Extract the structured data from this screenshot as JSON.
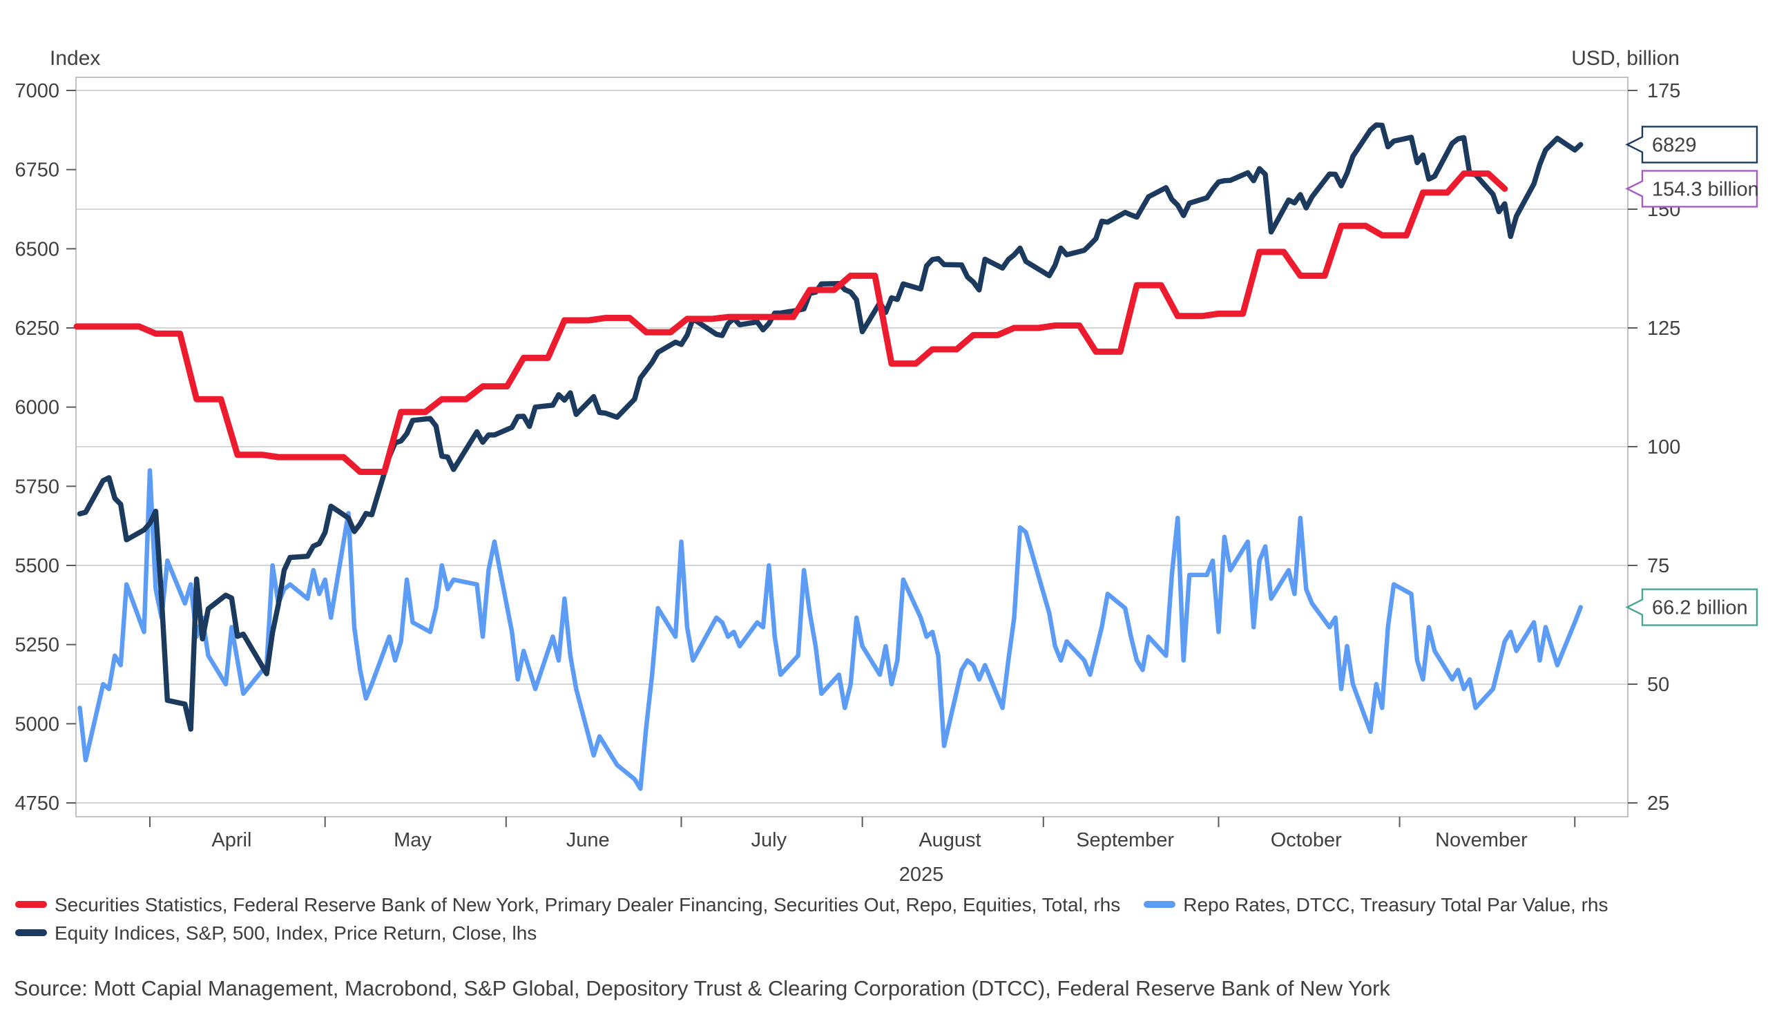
{
  "source": "Source: Mott Capial Management, Macrobond, S&P Global, Depository Trust & Clearing Corporation (DTCC), Federal Reserve Bank of New York",
  "legend": {
    "items": [
      {
        "key": "repo_equities",
        "label": "Securities Statistics, Federal Reserve Bank of New York, Primary Dealer Financing, Securities Out, Repo, Equities, Total, rhs",
        "color": "#EC1B2D"
      },
      {
        "key": "repo_rates",
        "label": "Repo Rates, DTCC, Treasury Total Par Value, rhs",
        "color": "#5D9CF5"
      },
      {
        "key": "sp500",
        "label": "Equity Indices, S&P, 500, Index, Price Return, Close, lhs",
        "color": "#1C3A5E"
      }
    ]
  },
  "colors": {
    "grid": "#D6D6D6",
    "plot_border": "#C2C2C2",
    "tick": "#5A5A5A",
    "text": "#404040",
    "red": "#EC1B2D",
    "navy": "#1C3A5E",
    "blue": "#5D9CF5",
    "purple": "#A35AC5",
    "teal": "#4AA492"
  },
  "chart_data": {
    "type": "line",
    "title": "",
    "year": "2025",
    "left_axis": {
      "title": "Index",
      "min": 4750,
      "max": 7000,
      "ticks": [
        7000,
        6750,
        6500,
        6250,
        6000,
        5750,
        5500,
        5250,
        5000,
        4750
      ]
    },
    "right_axis": {
      "title": "USD, billion",
      "min": 25,
      "max": 175,
      "ticks": [
        175,
        150,
        125,
        100,
        75,
        50,
        25
      ]
    },
    "x_axis": {
      "year_label": "2025",
      "month_tick_dates": [
        "4/1",
        "5/1",
        "6/1",
        "7/1",
        "8/1",
        "9/1",
        "10/1",
        "11/1",
        "12/1"
      ],
      "month_labels": [
        {
          "label": "April",
          "mid": "4/15"
        },
        {
          "label": "May",
          "mid": "5/16"
        },
        {
          "label": "June",
          "mid": "6/15"
        },
        {
          "label": "July",
          "mid": "7/16"
        },
        {
          "label": "August",
          "mid": "8/16"
        },
        {
          "label": "September",
          "mid": "9/15"
        },
        {
          "label": "October",
          "mid": "10/16"
        },
        {
          "label": "November",
          "mid": "11/15"
        }
      ]
    },
    "series": [
      {
        "key": "repo_equities",
        "name": "Securities Statistics, Federal Reserve Bank of New York, Primary Dealer Financing, Securities Out, Repo, Equities, Total, rhs",
        "axis": "rhs",
        "color": "#EC1B2D",
        "style": "step",
        "dates": [
          "3/19",
          "3/26",
          "4/2",
          "4/9",
          "4/16",
          "4/23",
          "4/30",
          "5/7",
          "5/14",
          "5/21",
          "5/28",
          "6/4",
          "6/11",
          "6/18",
          "6/25",
          "7/2",
          "7/9",
          "7/16",
          "7/23",
          "7/30",
          "8/6",
          "8/13",
          "8/20",
          "8/27",
          "9/3",
          "9/10",
          "9/17",
          "9/24",
          "10/1",
          "10/8",
          "10/15",
          "10/22",
          "10/29",
          "11/5",
          "11/12",
          "11/19"
        ],
        "values": [
          125.3,
          125.3,
          123.8,
          110,
          98.3,
          97.8,
          97.8,
          94.7,
          107.3,
          110,
          112.7,
          118.7,
          126.6,
          127.1,
          124.1,
          126.9,
          127.3,
          127.3,
          133,
          136,
          117.5,
          120.5,
          123.5,
          125,
          125.5,
          120,
          134,
          127.5,
          128,
          141,
          136,
          146.5,
          144.5,
          153.5,
          157.5,
          154.3
        ]
      },
      {
        "key": "repo_rates",
        "name": "Repo Rates, DTCC, Treasury Total Par Value, rhs",
        "axis": "rhs",
        "color": "#5D9CF5",
        "style": "line",
        "dates": [
          "3/20",
          "3/21",
          "3/24",
          "3/25",
          "3/26",
          "3/27",
          "3/28",
          "3/31",
          "4/1",
          "4/2",
          "4/3",
          "4/4",
          "4/7",
          "4/8",
          "4/9",
          "4/10",
          "4/11",
          "4/14",
          "4/15",
          "4/16",
          "4/17",
          "4/21",
          "4/22",
          "4/23",
          "4/24",
          "4/25",
          "4/28",
          "4/29",
          "4/30",
          "5/1",
          "5/2",
          "5/5",
          "5/6",
          "5/7",
          "5/8",
          "5/9",
          "5/12",
          "5/13",
          "5/14",
          "5/15",
          "5/16",
          "5/19",
          "5/20",
          "5/21",
          "5/22",
          "5/23",
          "5/27",
          "5/28",
          "5/29",
          "5/30",
          "6/2",
          "6/3",
          "6/4",
          "6/5",
          "6/6",
          "6/9",
          "6/10",
          "6/11",
          "6/12",
          "6/13",
          "6/16",
          "6/17",
          "6/18",
          "6/20",
          "6/23",
          "6/24",
          "6/25",
          "6/26",
          "6/27",
          "6/30",
          "7/1",
          "7/2",
          "7/3",
          "7/7",
          "7/8",
          "7/9",
          "7/10",
          "7/11",
          "7/14",
          "7/15",
          "7/16",
          "7/17",
          "7/18",
          "7/21",
          "7/22",
          "7/23",
          "7/24",
          "7/25",
          "7/28",
          "7/29",
          "7/30",
          "7/31",
          "8/1",
          "8/4",
          "8/5",
          "8/6",
          "8/7",
          "8/8",
          "8/11",
          "8/12",
          "8/13",
          "8/14",
          "8/15",
          "8/18",
          "8/19",
          "8/20",
          "8/21",
          "8/22",
          "8/25",
          "8/26",
          "8/27",
          "8/28",
          "8/29",
          "9/2",
          "9/3",
          "9/4",
          "9/5",
          "9/8",
          "9/9",
          "9/10",
          "9/11",
          "9/12",
          "9/15",
          "9/16",
          "9/17",
          "9/18",
          "9/19",
          "9/22",
          "9/23",
          "9/24",
          "9/25",
          "9/26",
          "9/29",
          "9/30",
          "10/1",
          "10/2",
          "10/3",
          "10/6",
          "10/7",
          "10/8",
          "10/9",
          "10/10",
          "10/13",
          "10/14",
          "10/15",
          "10/16",
          "10/17",
          "10/20",
          "10/21",
          "10/22",
          "10/23",
          "10/24",
          "10/27",
          "10/28",
          "10/29",
          "10/30",
          "10/31",
          "11/3",
          "11/4",
          "11/5",
          "11/6",
          "11/7",
          "11/10",
          "11/11",
          "11/12",
          "11/13",
          "11/14",
          "11/17",
          "11/18",
          "11/19",
          "11/20",
          "11/21",
          "11/24",
          "11/25",
          "11/26",
          "11/28",
          "12/1",
          "12/2"
        ],
        "values": [
          45,
          34,
          50,
          49,
          56,
          54,
          71,
          61,
          95,
          70,
          64,
          76,
          67,
          71,
          60,
          64,
          56,
          50,
          62,
          55,
          48,
          54,
          75,
          67,
          70,
          71,
          68,
          74,
          69,
          72,
          64,
          86,
          62,
          53,
          47,
          50,
          60,
          55,
          59,
          72,
          63,
          61,
          66,
          75,
          70,
          72,
          71,
          60,
          74,
          80,
          61,
          51,
          57,
          53,
          49,
          60,
          55,
          68,
          56,
          49,
          35,
          39,
          37,
          33,
          30,
          28,
          41,
          52,
          66,
          60,
          80,
          62,
          55,
          64,
          63,
          60,
          61,
          58,
          63,
          62,
          75,
          60,
          52,
          56,
          74,
          65,
          58,
          48,
          52,
          45,
          50,
          64,
          58,
          52,
          58,
          50,
          55,
          72,
          64,
          60,
          61,
          56,
          37,
          53,
          55,
          54,
          51,
          54,
          45,
          55,
          64,
          83,
          82,
          65,
          58,
          55,
          59,
          55,
          52,
          57,
          62,
          69,
          66,
          60,
          55,
          53,
          60,
          56,
          73,
          85,
          55,
          73,
          73,
          76,
          61,
          81,
          74,
          80,
          62,
          76,
          79,
          68,
          74,
          69,
          85,
          70,
          67,
          62,
          64,
          49,
          58,
          50,
          40,
          50,
          45,
          62,
          71,
          69,
          55,
          51,
          62,
          57,
          51,
          53,
          49,
          51,
          45,
          49,
          54,
          59,
          61,
          57,
          63,
          55,
          62,
          54,
          63,
          66.2
        ]
      },
      {
        "key": "sp500",
        "name": "Equity Indices, S&P, 500, Index, Price Return, Close, lhs",
        "axis": "lhs",
        "color": "#1C3A5E",
        "style": "line",
        "dates": [
          "3/20",
          "3/21",
          "3/24",
          "3/25",
          "3/26",
          "3/27",
          "3/28",
          "3/31",
          "4/1",
          "4/2",
          "4/3",
          "4/4",
          "4/7",
          "4/8",
          "4/9",
          "4/10",
          "4/11",
          "4/14",
          "4/15",
          "4/16",
          "4/17",
          "4/21",
          "4/22",
          "4/23",
          "4/24",
          "4/25",
          "4/28",
          "4/29",
          "4/30",
          "5/1",
          "5/2",
          "5/5",
          "5/6",
          "5/7",
          "5/8",
          "5/9",
          "5/12",
          "5/13",
          "5/14",
          "5/15",
          "5/16",
          "5/19",
          "5/20",
          "5/21",
          "5/22",
          "5/23",
          "5/27",
          "5/28",
          "5/29",
          "5/30",
          "6/2",
          "6/3",
          "6/4",
          "6/5",
          "6/6",
          "6/9",
          "6/10",
          "6/11",
          "6/12",
          "6/13",
          "6/16",
          "6/17",
          "6/18",
          "6/20",
          "6/23",
          "6/24",
          "6/26",
          "6/27",
          "6/30",
          "7/1",
          "7/2",
          "7/3",
          "7/7",
          "7/8",
          "7/9",
          "7/10",
          "7/11",
          "7/14",
          "7/15",
          "7/16",
          "7/17",
          "7/18",
          "7/21",
          "7/22",
          "7/23",
          "7/24",
          "7/25",
          "7/28",
          "7/29",
          "7/30",
          "7/31",
          "8/1",
          "8/4",
          "8/5",
          "8/6",
          "8/7",
          "8/8",
          "8/11",
          "8/12",
          "8/13",
          "8/14",
          "8/15",
          "8/18",
          "8/19",
          "8/20",
          "8/21",
          "8/22",
          "8/25",
          "8/26",
          "8/27",
          "8/28",
          "8/29",
          "9/2",
          "9/3",
          "9/4",
          "9/5",
          "9/8",
          "9/9",
          "9/10",
          "9/11",
          "9/12",
          "9/15",
          "9/16",
          "9/17",
          "9/18",
          "9/19",
          "9/22",
          "9/23",
          "9/24",
          "9/25",
          "9/26",
          "9/29",
          "9/30",
          "10/1",
          "10/2",
          "10/3",
          "10/6",
          "10/7",
          "10/8",
          "10/9",
          "10/10",
          "10/13",
          "10/14",
          "10/15",
          "10/16",
          "10/17",
          "10/20",
          "10/21",
          "10/22",
          "10/23",
          "10/24",
          "10/27",
          "10/28",
          "10/29",
          "10/30",
          "10/31",
          "11/3",
          "11/4",
          "11/5",
          "11/6",
          "11/7",
          "11/10",
          "11/11",
          "11/12",
          "11/13",
          "11/14",
          "11/17",
          "11/18",
          "11/19",
          "11/20",
          "11/21",
          "11/24",
          "11/25",
          "11/26",
          "11/28",
          "12/1",
          "12/2"
        ],
        "values": [
          5663,
          5668,
          5768,
          5777,
          5712,
          5693,
          5581,
          5612,
          5633,
          5671,
          5396,
          5074,
          5062,
          4983,
          5457,
          5268,
          5363,
          5406,
          5397,
          5276,
          5283,
          5158,
          5288,
          5376,
          5485,
          5525,
          5529,
          5561,
          5569,
          5604,
          5687,
          5650,
          5607,
          5631,
          5664,
          5660,
          5844,
          5887,
          5893,
          5916,
          5958,
          5964,
          5940,
          5845,
          5842,
          5803,
          5922,
          5889,
          5912,
          5912,
          5936,
          5970,
          5971,
          5939,
          6000,
          6006,
          6039,
          6022,
          6045,
          5977,
          6033,
          5983,
          5981,
          5968,
          6025,
          6092,
          6141,
          6173,
          6205,
          6198,
          6227,
          6279,
          6230,
          6226,
          6263,
          6280,
          6260,
          6269,
          6244,
          6264,
          6297,
          6297,
          6306,
          6310,
          6359,
          6363,
          6389,
          6390,
          6371,
          6363,
          6339,
          6238,
          6330,
          6299,
          6345,
          6340,
          6389,
          6373,
          6446,
          6466,
          6469,
          6450,
          6449,
          6411,
          6395,
          6370,
          6467,
          6439,
          6466,
          6481,
          6502,
          6460,
          6415,
          6448,
          6502,
          6481,
          6495,
          6513,
          6532,
          6587,
          6584,
          6615,
          6607,
          6600,
          6632,
          6664,
          6693,
          6656,
          6638,
          6605,
          6644,
          6661,
          6688,
          6711,
          6715,
          6716,
          6740,
          6715,
          6753,
          6735,
          6553,
          6654,
          6645,
          6671,
          6629,
          6664,
          6736,
          6735,
          6699,
          6738,
          6792,
          6875,
          6891,
          6890,
          6822,
          6840,
          6852,
          6772,
          6796,
          6720,
          6729,
          6833,
          6847,
          6851,
          6737,
          6734,
          6672,
          6617,
          6642,
          6539,
          6603,
          6705,
          6766,
          6812,
          6849,
          6812,
          6829
        ]
      }
    ],
    "callouts": [
      {
        "key": "sp500",
        "text": "6829",
        "value": 6829,
        "axis": "lhs",
        "color": "#1C3A5E"
      },
      {
        "key": "repo_equities",
        "text": "154.3 billion",
        "value": 154.3,
        "axis": "rhs",
        "color": "#A35AC5"
      },
      {
        "key": "repo_rates",
        "text": "66.2 billion",
        "value": 66.2,
        "axis": "rhs",
        "color": "#4AA492"
      }
    ],
    "legend_position": "bottom",
    "grid": "horizontal"
  }
}
